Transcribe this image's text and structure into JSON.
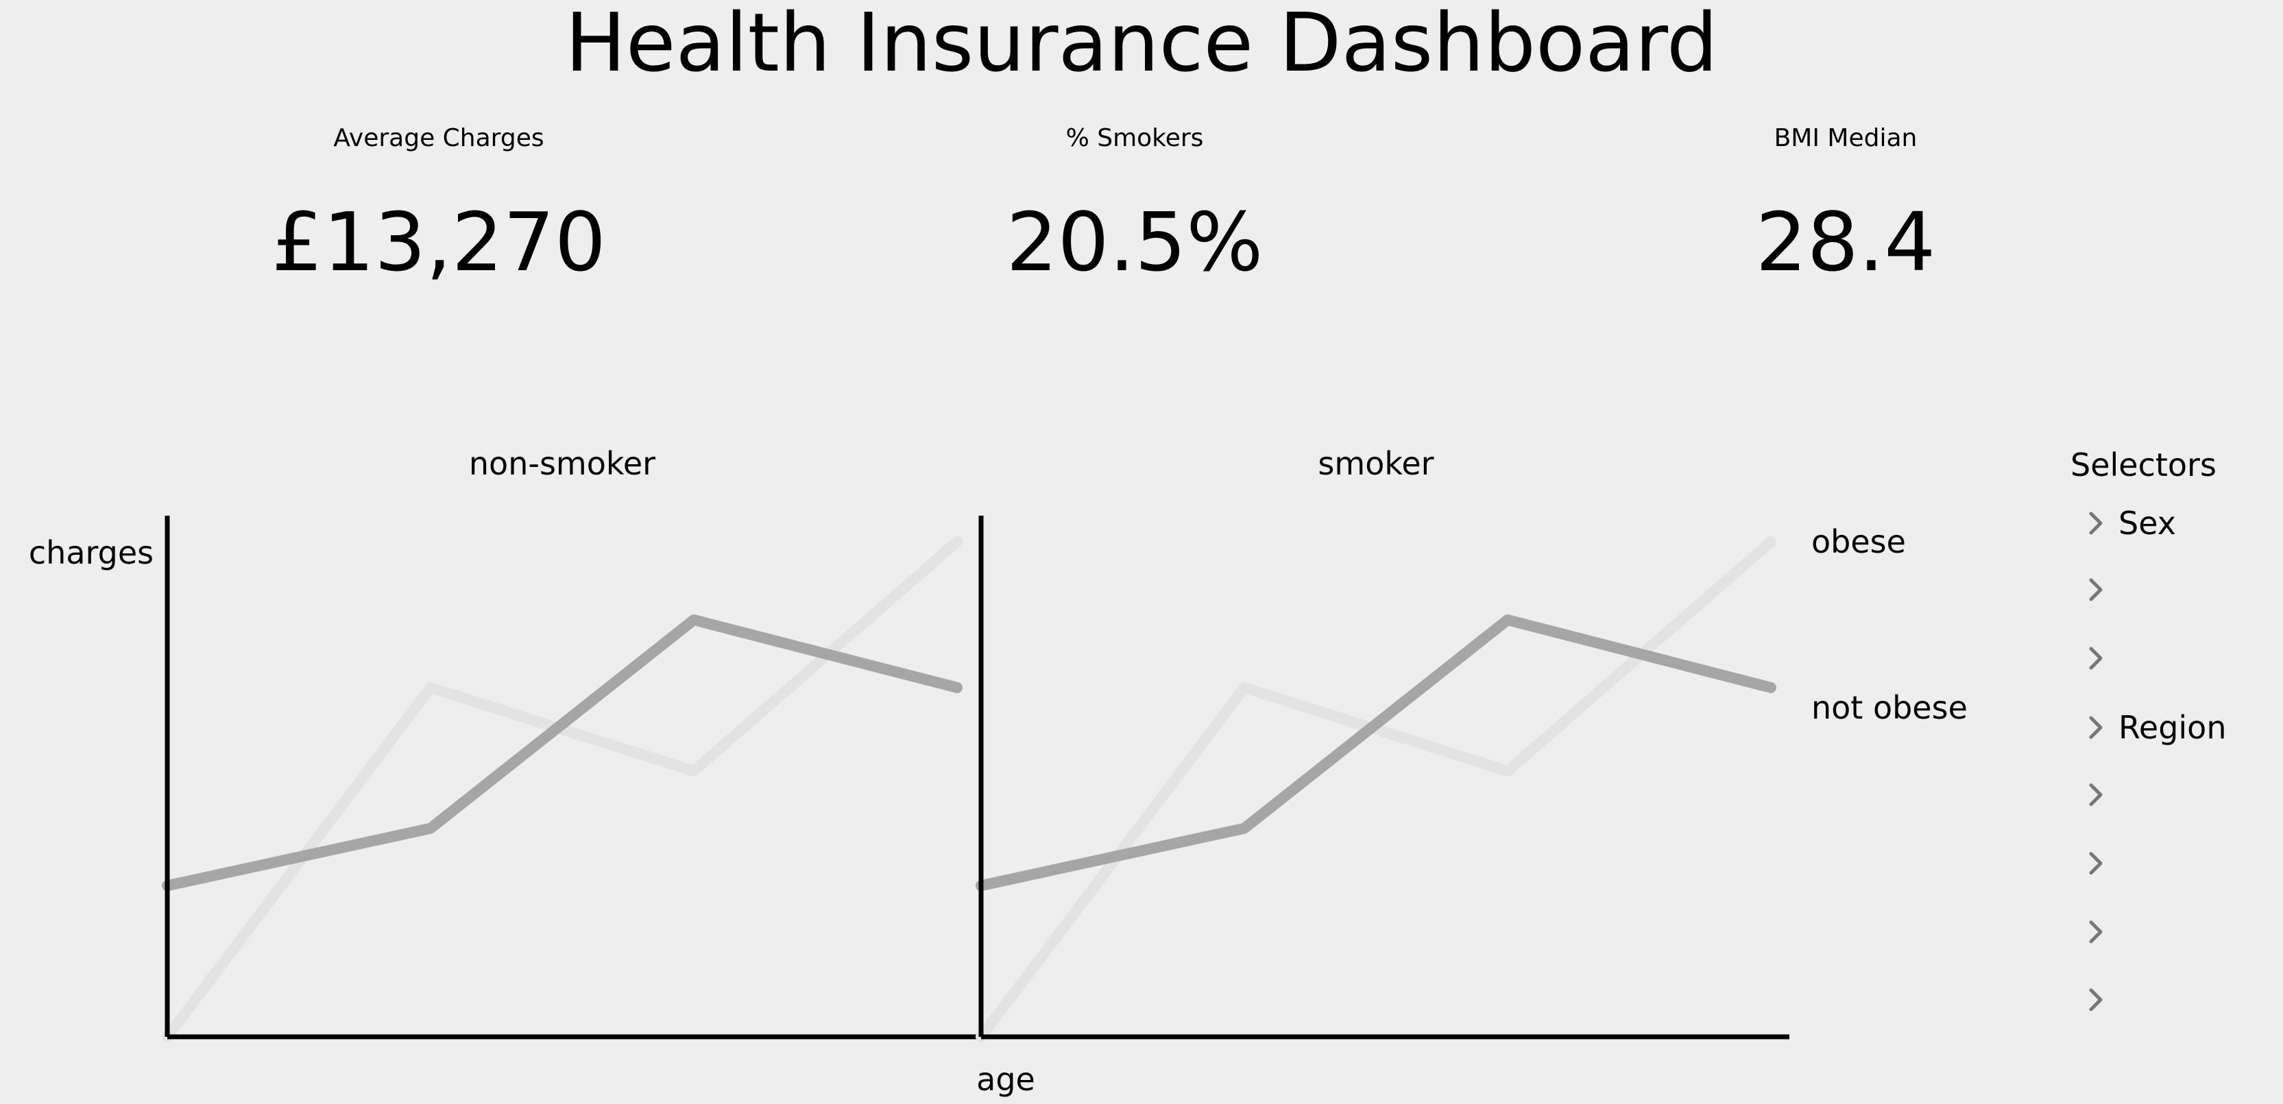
{
  "dashboard": {
    "title": "Health Insurance Dashboard"
  },
  "kpis": [
    {
      "label": "Average Charges",
      "value": "£13,270"
    },
    {
      "label": "% Smokers",
      "value": "20.5%"
    },
    {
      "label": "BMI Median",
      "value": "28.4"
    }
  ],
  "selectors": {
    "title": "Selectors",
    "items": [
      {
        "label": "Sex",
        "icon": "chevron-right-icon"
      },
      {
        "label": "",
        "icon": "chevron-right-icon"
      },
      {
        "label": "",
        "icon": "chevron-right-icon"
      },
      {
        "label": "Region",
        "icon": "chevron-right-icon"
      },
      {
        "label": "",
        "icon": "chevron-right-icon"
      },
      {
        "label": "",
        "icon": "chevron-right-icon"
      },
      {
        "label": "",
        "icon": "chevron-right-icon"
      },
      {
        "label": "",
        "icon": "chevron-right-icon"
      }
    ]
  },
  "colors": {
    "background": "#eeeeee",
    "obese": "#e3e3e3",
    "not_obese": "#a6a6a6",
    "axis": "#000000"
  },
  "chart_data": {
    "type": "line",
    "ylabel": "charges",
    "xlabel": "age",
    "grid": false,
    "legend": "right",
    "x": [
      0,
      1,
      2,
      3
    ],
    "ylim": [
      0,
      100
    ],
    "panels": [
      {
        "title": "non-smoker",
        "series": [
          {
            "name": "obese",
            "values": [
              0,
              67,
              51,
              95
            ]
          },
          {
            "name": "not obese",
            "values": [
              29,
              40,
              80,
              67
            ]
          }
        ]
      },
      {
        "title": "smoker",
        "series": [
          {
            "name": "obese",
            "values": [
              0,
              67,
              51,
              95
            ]
          },
          {
            "name": "not obese",
            "values": [
              29,
              40,
              80,
              67
            ]
          }
        ]
      }
    ]
  }
}
